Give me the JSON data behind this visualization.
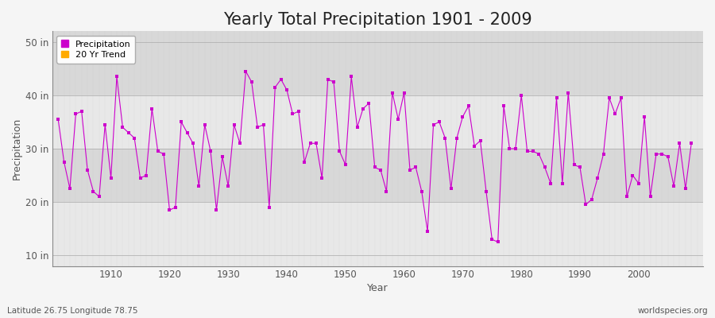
{
  "title": "Yearly Total Precipitation 1901 - 2009",
  "xlabel": "Year",
  "ylabel": "Precipitation",
  "lat_lon_label": "Latitude 26.75 Longitude 78.75",
  "source_label": "worldspecies.org",
  "ylim": [
    8,
    52
  ],
  "yticks": [
    10,
    20,
    30,
    40,
    50
  ],
  "ytick_labels": [
    "10 in",
    "20 in",
    "30 in",
    "40 in",
    "50 in"
  ],
  "line_color": "#cc00cc",
  "marker_color": "#cc00cc",
  "marker_size": 3,
  "bg_outer": "#f0f0f0",
  "bg_band_light": "#e8e8e8",
  "bg_band_dark": "#d8d8d8",
  "grid_color_x": "#cccccc",
  "title_fontsize": 15,
  "years": [
    1901,
    1902,
    1903,
    1904,
    1905,
    1906,
    1907,
    1908,
    1909,
    1910,
    1911,
    1912,
    1913,
    1914,
    1915,
    1916,
    1917,
    1918,
    1919,
    1920,
    1921,
    1922,
    1923,
    1924,
    1925,
    1926,
    1927,
    1928,
    1929,
    1930,
    1931,
    1932,
    1933,
    1934,
    1935,
    1936,
    1937,
    1938,
    1939,
    1940,
    1941,
    1942,
    1943,
    1944,
    1945,
    1946,
    1947,
    1948,
    1949,
    1950,
    1951,
    1952,
    1953,
    1954,
    1955,
    1956,
    1957,
    1958,
    1959,
    1960,
    1961,
    1962,
    1963,
    1964,
    1965,
    1966,
    1967,
    1968,
    1969,
    1970,
    1971,
    1972,
    1973,
    1974,
    1975,
    1976,
    1977,
    1978,
    1979,
    1980,
    1981,
    1982,
    1983,
    1984,
    1985,
    1986,
    1987,
    1988,
    1989,
    1990,
    1991,
    1992,
    1993,
    1994,
    1995,
    1996,
    1997,
    1998,
    1999,
    2000,
    2001,
    2002,
    2003,
    2004,
    2005,
    2006,
    2007,
    2008,
    2009
  ],
  "precip": [
    35.5,
    27.5,
    22.5,
    36.5,
    37.0,
    26.0,
    22.0,
    21.0,
    34.5,
    24.5,
    43.5,
    34.0,
    33.0,
    32.0,
    24.5,
    25.0,
    37.5,
    29.5,
    29.0,
    18.5,
    19.0,
    35.0,
    33.0,
    31.0,
    23.0,
    34.5,
    29.5,
    18.5,
    28.5,
    23.0,
    34.5,
    31.0,
    44.5,
    42.5,
    34.0,
    34.5,
    19.0,
    41.5,
    43.0,
    41.0,
    36.5,
    37.0,
    27.5,
    31.0,
    31.0,
    24.5,
    43.0,
    42.5,
    29.5,
    27.0,
    43.5,
    34.0,
    37.5,
    38.5,
    26.5,
    26.0,
    22.0,
    40.5,
    35.5,
    40.5,
    26.0,
    26.5,
    22.0,
    14.5,
    34.5,
    35.0,
    32.0,
    22.5,
    32.0,
    36.0,
    38.0,
    30.5,
    31.5,
    22.0,
    13.0,
    12.5,
    38.0,
    30.0,
    30.0,
    40.0,
    29.5,
    29.5,
    29.0,
    26.5,
    23.5,
    39.5,
    23.5,
    40.5,
    27.0,
    26.5,
    19.5,
    20.5,
    24.5,
    29.0,
    39.5,
    36.5,
    39.5,
    21.0,
    25.0,
    23.5,
    36.0,
    21.0,
    29.0,
    29.0,
    28.5,
    23.0,
    31.0,
    22.5,
    31.0
  ],
  "xlim_left": 1900,
  "xlim_right": 2011
}
